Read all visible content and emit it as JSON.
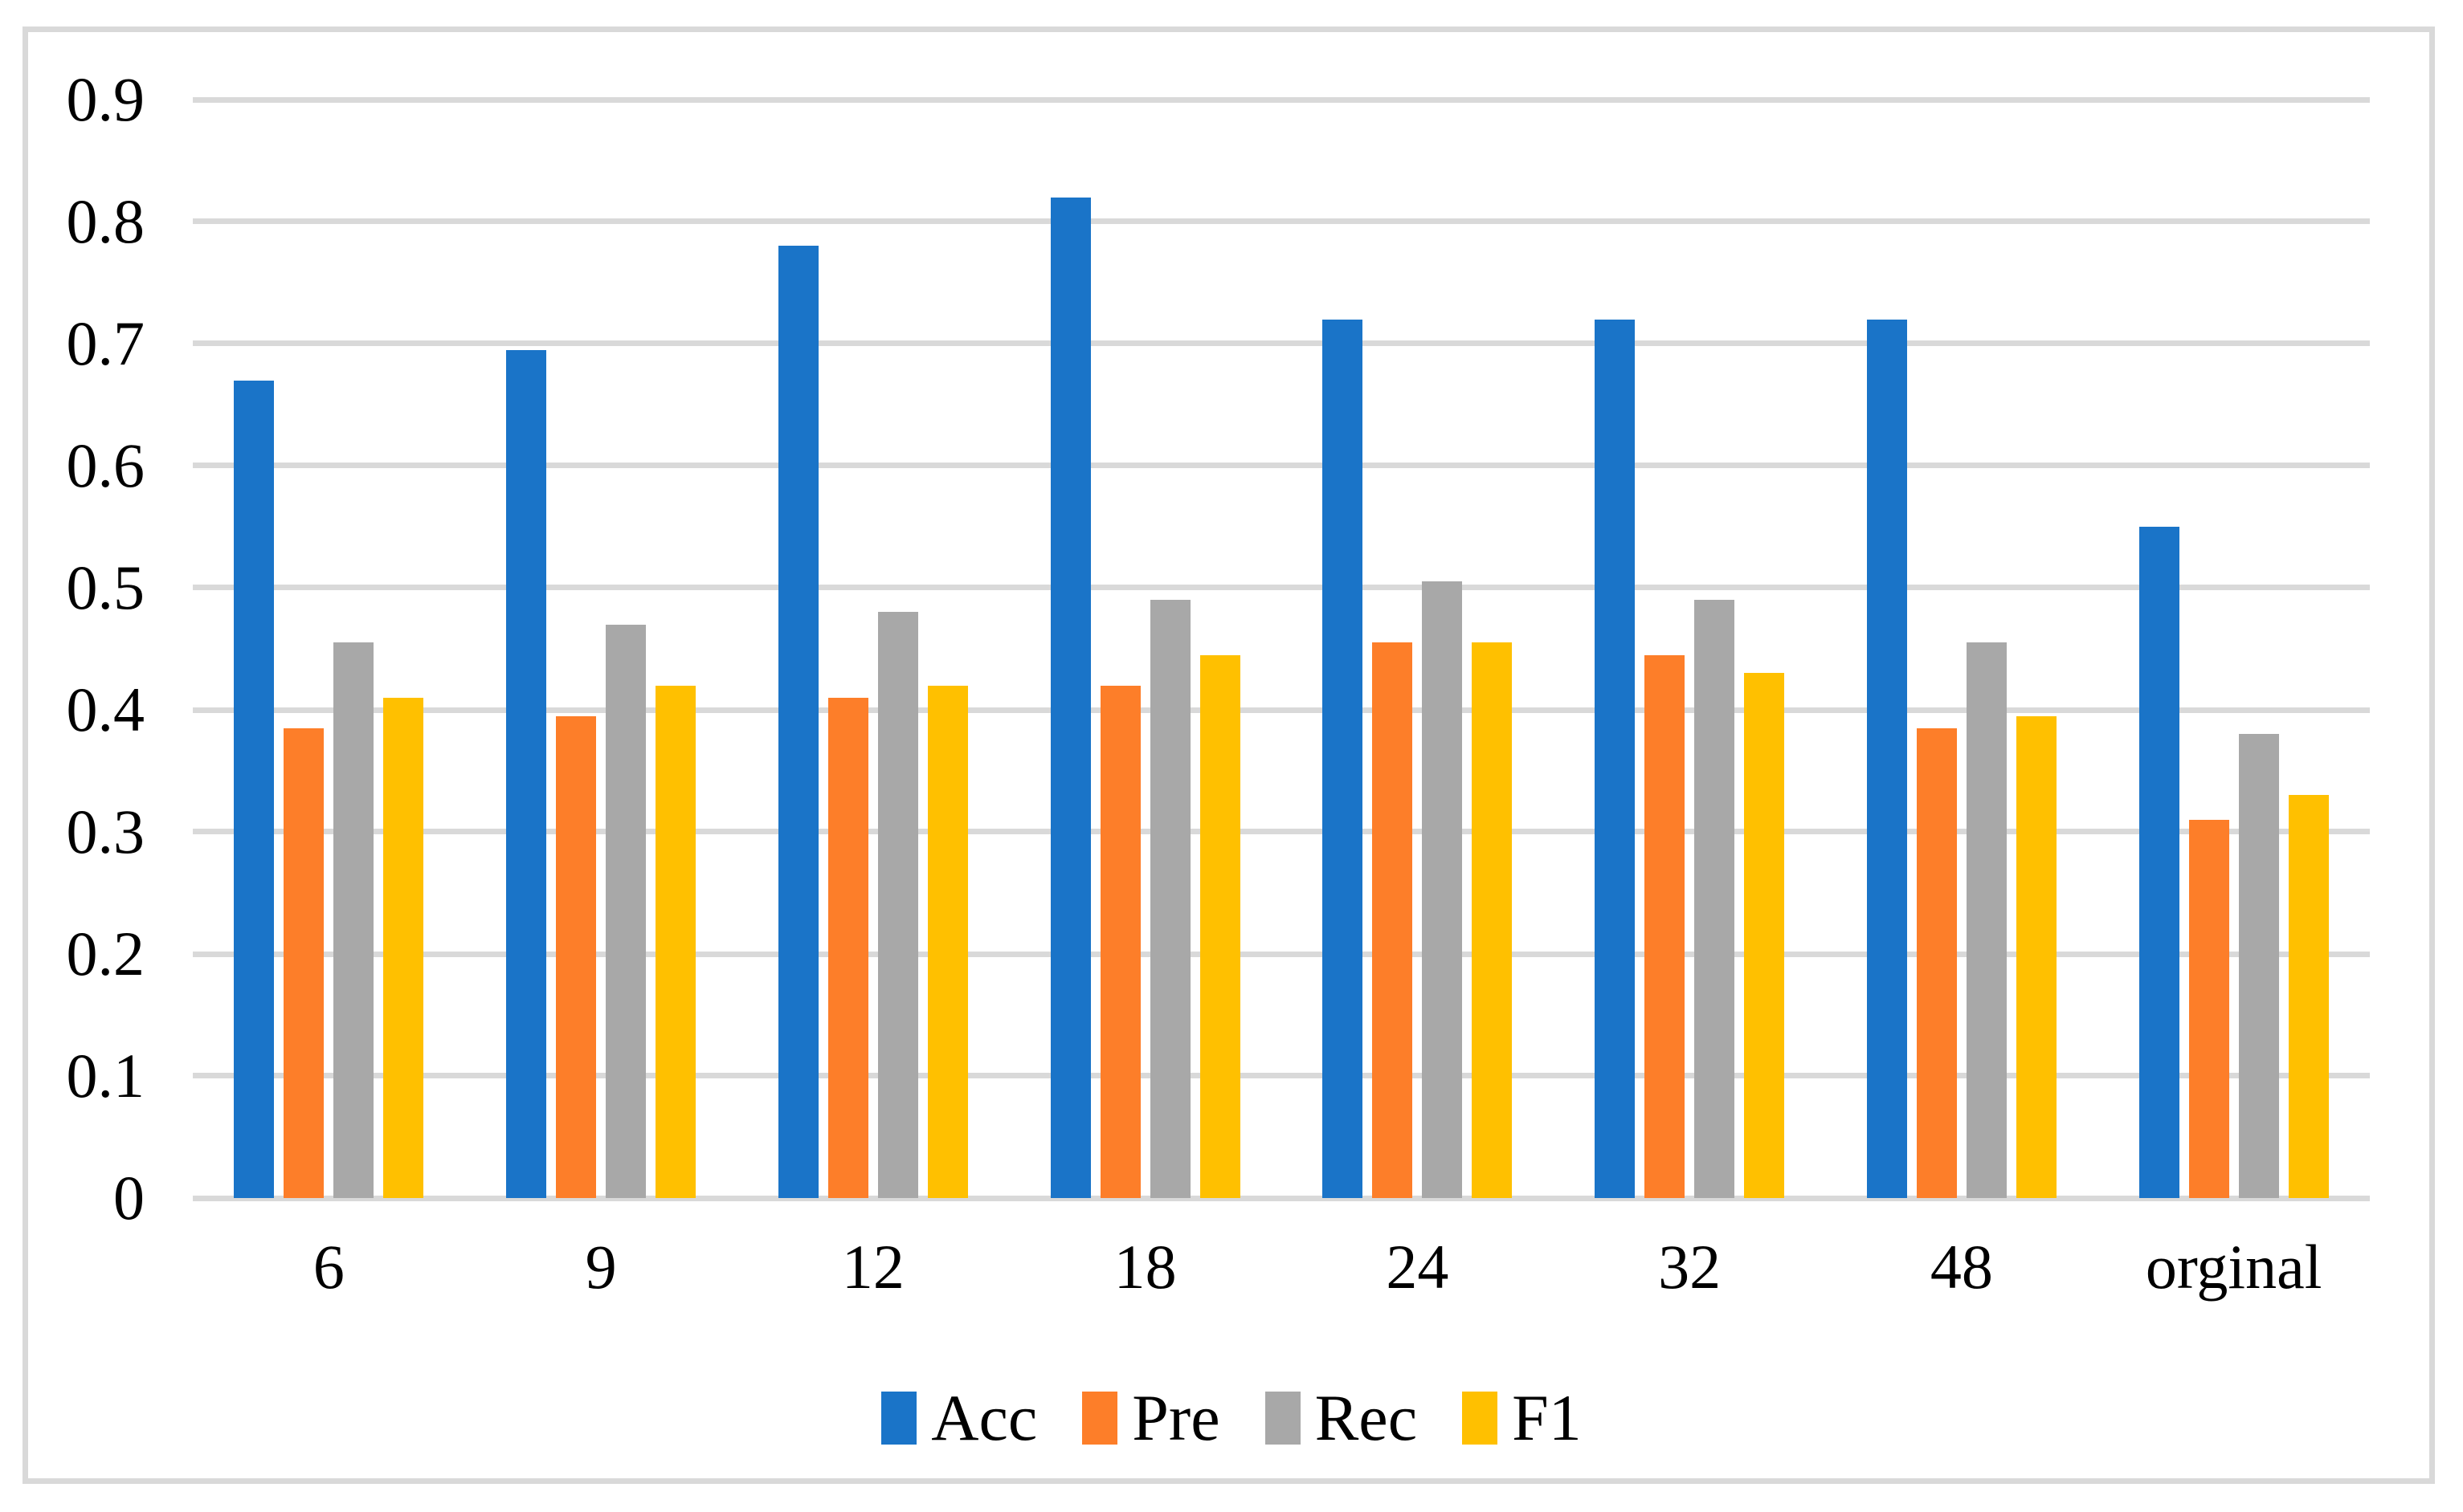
{
  "chart_data": {
    "type": "bar",
    "title": "",
    "xlabel": "",
    "ylabel": "",
    "categories": [
      "6",
      "9",
      "12",
      "18",
      "24",
      "32",
      "48",
      "orginal"
    ],
    "series": [
      {
        "name": "Acc",
        "color": "#1a74c8",
        "values": [
          0.67,
          0.695,
          0.78,
          0.82,
          0.72,
          0.72,
          0.72,
          0.55
        ]
      },
      {
        "name": "Pre",
        "color": "#fd7e29",
        "values": [
          0.385,
          0.395,
          0.41,
          0.42,
          0.455,
          0.445,
          0.385,
          0.31
        ]
      },
      {
        "name": "Rec",
        "color": "#a8a8a8",
        "values": [
          0.455,
          0.47,
          0.48,
          0.49,
          0.505,
          0.49,
          0.455,
          0.38
        ]
      },
      {
        "name": "F1",
        "color": "#ffc000",
        "values": [
          0.41,
          0.42,
          0.42,
          0.445,
          0.455,
          0.43,
          0.395,
          0.33
        ]
      }
    ],
    "ylim": [
      0,
      0.9
    ],
    "ytick_step": 0.1,
    "yticks": [
      "0.9",
      "0.8",
      "0.7",
      "0.6",
      "0.5",
      "0.4",
      "0.3",
      "0.2",
      "0.1",
      "0"
    ],
    "grid": true,
    "gridline_color": "#d9d9d9",
    "border_color": "#d9d9d9",
    "legend_position": "bottom"
  }
}
